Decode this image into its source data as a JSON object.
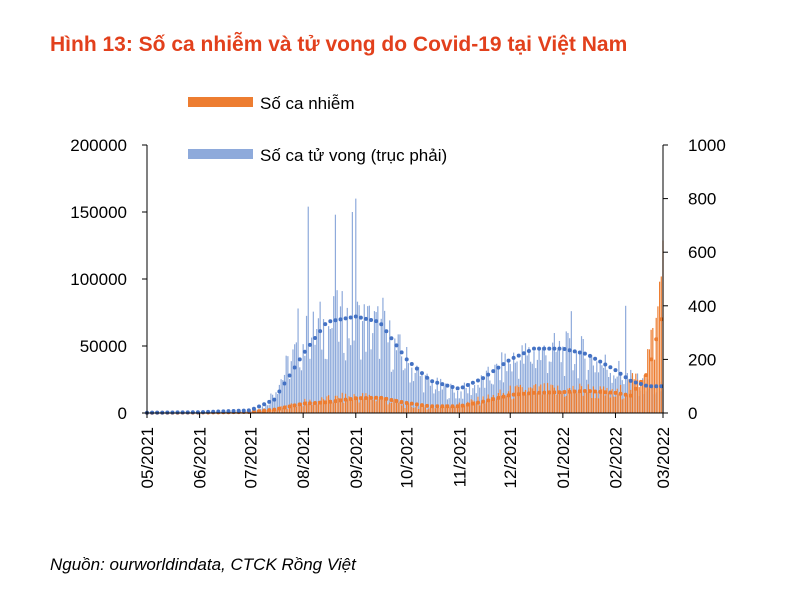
{
  "title": "Hình 13: Số ca nhiễm và tử vong do Covid-19 tại Việt Nam",
  "source": "Nguồn: ourworldindata, CTCK Rồng Việt",
  "colors": {
    "title": "#e2401c",
    "cases": "#ed7d31",
    "deaths": "#4472c4",
    "deaths_light": "#8eaadb"
  },
  "chart_data": {
    "type": "bar",
    "x_ticks": [
      "05/2021",
      "06/2021",
      "07/2021",
      "08/2021",
      "09/2021",
      "10/2021",
      "11/2021",
      "12/2021",
      "01/2022",
      "02/2022",
      "03/2022"
    ],
    "x_range": [
      "2021-05-01",
      "2022-03-01"
    ],
    "y_left": {
      "ticks": [
        "0",
        "50000",
        "100000",
        "150000",
        "200000"
      ],
      "ylim": [
        0,
        200000
      ]
    },
    "y_right": {
      "ticks": [
        "0",
        "200",
        "400",
        "600",
        "800",
        "1000"
      ],
      "ylim": [
        0,
        1000
      ]
    },
    "legend": {
      "placement": "top",
      "entries": [
        "Số ca nhiễm",
        "Số ca tử vong (trục phải)"
      ]
    },
    "series": [
      {
        "name": "Số ca nhiễm",
        "axis": "left",
        "kind": "bar",
        "color": "#ed7d31",
        "monthly_points": [
          [
            "2021-05-01",
            100
          ],
          [
            "2021-06-01",
            300
          ],
          [
            "2021-06-15",
            500
          ],
          [
            "2021-07-01",
            700
          ],
          [
            "2021-07-15",
            2500
          ],
          [
            "2021-08-01",
            7500
          ],
          [
            "2021-08-15",
            9500
          ],
          [
            "2021-09-01",
            12000
          ],
          [
            "2021-09-15",
            11000
          ],
          [
            "2021-10-01",
            5500
          ],
          [
            "2021-10-15",
            4000
          ],
          [
            "2021-11-01",
            6000
          ],
          [
            "2021-11-15",
            9500
          ],
          [
            "2021-12-01",
            15000
          ],
          [
            "2021-12-15",
            16500
          ],
          [
            "2021-12-31",
            16000
          ],
          [
            "2022-01-15",
            17000
          ],
          [
            "2022-02-01",
            13000
          ],
          [
            "2022-02-15",
            25000
          ],
          [
            "2022-02-25",
            60000
          ],
          [
            "2022-03-01",
            120000
          ]
        ],
        "moving_average": [
          [
            "2021-05-01",
            100
          ],
          [
            "2021-06-01",
            300
          ],
          [
            "2021-07-01",
            800
          ],
          [
            "2021-07-15",
            2500
          ],
          [
            "2021-08-01",
            7000
          ],
          [
            "2021-08-15",
            8000
          ],
          [
            "2021-09-01",
            11000
          ],
          [
            "2021-09-15",
            11500
          ],
          [
            "2021-10-01",
            7500
          ],
          [
            "2021-10-15",
            5000
          ],
          [
            "2021-11-01",
            5000
          ],
          [
            "2021-11-15",
            8500
          ],
          [
            "2021-12-01",
            13500
          ],
          [
            "2021-12-15",
            15000
          ],
          [
            "2021-12-31",
            15500
          ],
          [
            "2022-01-15",
            16500
          ],
          [
            "2022-02-01",
            15000
          ],
          [
            "2022-02-10",
            13000
          ],
          [
            "2022-02-20",
            30000
          ],
          [
            "2022-03-01",
            75000
          ]
        ]
      },
      {
        "name": "Số ca tử vong (trục phải)",
        "axis": "right",
        "kind": "bar",
        "color": "#8eaadb",
        "monthly_points": [
          [
            "2021-05-01",
            1
          ],
          [
            "2021-06-01",
            3
          ],
          [
            "2021-07-01",
            8
          ],
          [
            "2021-07-10",
            30
          ],
          [
            "2021-07-20",
            150
          ],
          [
            "2021-08-01",
            280
          ],
          [
            "2021-08-15",
            350
          ],
          [
            "2021-09-01",
            360
          ],
          [
            "2021-09-15",
            330
          ],
          [
            "2021-10-01",
            200
          ],
          [
            "2021-10-15",
            110
          ],
          [
            "2021-11-01",
            80
          ],
          [
            "2021-11-15",
            120
          ],
          [
            "2021-12-01",
            200
          ],
          [
            "2021-12-15",
            230
          ],
          [
            "2021-12-31",
            240
          ],
          [
            "2022-01-15",
            220
          ],
          [
            "2022-02-01",
            170
          ],
          [
            "2022-02-15",
            110
          ],
          [
            "2022-03-01",
            90
          ]
        ],
        "spikes": [
          [
            "2021-07-29",
            390
          ],
          [
            "2021-08-04",
            770
          ],
          [
            "2021-08-20",
            740
          ],
          [
            "2021-08-30",
            750
          ],
          [
            "2021-09-01",
            800
          ],
          [
            "2021-09-17",
            430
          ],
          [
            "2022-01-06",
            380
          ],
          [
            "2022-02-07",
            400
          ]
        ],
        "moving_average": [
          [
            "2021-05-01",
            1
          ],
          [
            "2021-06-01",
            3
          ],
          [
            "2021-07-01",
            10
          ],
          [
            "2021-07-15",
            50
          ],
          [
            "2021-08-01",
            220
          ],
          [
            "2021-08-15",
            340
          ],
          [
            "2021-09-01",
            360
          ],
          [
            "2021-09-15",
            340
          ],
          [
            "2021-10-01",
            200
          ],
          [
            "2021-10-15",
            120
          ],
          [
            "2021-11-01",
            90
          ],
          [
            "2021-11-15",
            130
          ],
          [
            "2021-12-01",
            200
          ],
          [
            "2021-12-15",
            240
          ],
          [
            "2022-01-01",
            240
          ],
          [
            "2022-01-15",
            220
          ],
          [
            "2022-02-01",
            160
          ],
          [
            "2022-02-10",
            120
          ],
          [
            "2022-02-20",
            100
          ],
          [
            "2022-03-01",
            100
          ]
        ]
      }
    ]
  }
}
